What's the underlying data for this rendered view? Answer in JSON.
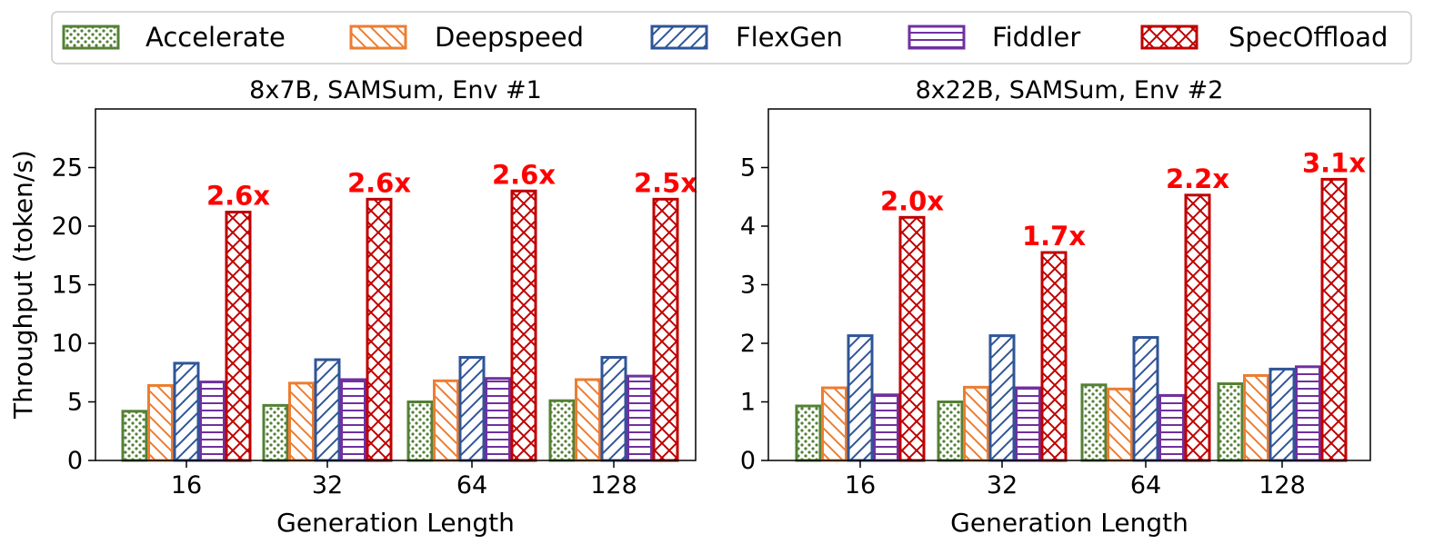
{
  "legend": [
    {
      "name": "Accelerate",
      "color": "#538135",
      "pattern": "dots"
    },
    {
      "name": "Deepspeed",
      "color": "#ed7d31",
      "pattern": "back-diagonal"
    },
    {
      "name": "FlexGen",
      "color": "#2f5597",
      "pattern": "forward-diagonal"
    },
    {
      "name": "Fiddler",
      "color": "#7030a0",
      "pattern": "horizontal"
    },
    {
      "name": "SpecOffload",
      "color": "#c00000",
      "pattern": "crosshatch"
    }
  ],
  "chart_data": [
    {
      "type": "bar",
      "title": "8x7B, SAMSum, Env #1",
      "xlabel": "Generation Length",
      "ylabel": "Throughput (token/s)",
      "categories": [
        "16",
        "32",
        "64",
        "128"
      ],
      "ylim": [
        0,
        30
      ],
      "yticks": [
        0,
        5,
        10,
        15,
        20,
        25
      ],
      "series": [
        {
          "name": "Accelerate",
          "values": [
            4.2,
            4.7,
            5.0,
            5.1
          ]
        },
        {
          "name": "Deepspeed",
          "values": [
            6.4,
            6.6,
            6.8,
            6.9
          ]
        },
        {
          "name": "FlexGen",
          "values": [
            8.3,
            8.6,
            8.8,
            8.8
          ]
        },
        {
          "name": "Fiddler",
          "values": [
            6.7,
            6.9,
            7.0,
            7.2
          ]
        },
        {
          "name": "SpecOffload",
          "values": [
            21.2,
            22.3,
            23.0,
            22.3
          ]
        }
      ],
      "annotations": [
        "2.6x",
        "2.6x",
        "2.6x",
        "2.5x"
      ]
    },
    {
      "type": "bar",
      "title": "8x22B, SAMSum, Env #2",
      "xlabel": "Generation Length",
      "ylabel": "",
      "categories": [
        "16",
        "32",
        "64",
        "128"
      ],
      "ylim": [
        0,
        6
      ],
      "yticks": [
        0,
        1,
        2,
        3,
        4,
        5
      ],
      "series": [
        {
          "name": "Accelerate",
          "values": [
            0.93,
            1.0,
            1.29,
            1.31
          ]
        },
        {
          "name": "Deepspeed",
          "values": [
            1.24,
            1.25,
            1.22,
            1.45
          ]
        },
        {
          "name": "FlexGen",
          "values": [
            2.13,
            2.13,
            2.1,
            1.56
          ]
        },
        {
          "name": "Fiddler",
          "values": [
            1.12,
            1.24,
            1.11,
            1.6
          ]
        },
        {
          "name": "SpecOffload",
          "values": [
            4.15,
            3.55,
            4.53,
            4.8
          ]
        }
      ],
      "annotations": [
        "2.0x",
        "1.7x",
        "2.2x",
        "3.1x"
      ]
    }
  ]
}
